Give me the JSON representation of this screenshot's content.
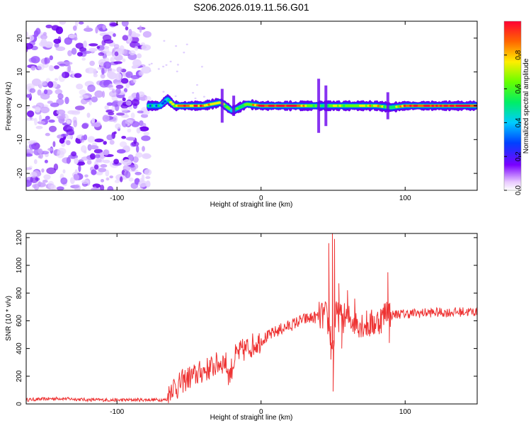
{
  "title": "S206.2026.019.11.56.G01",
  "chart_data": [
    {
      "type": "heatmap",
      "title": "S206.2026.019.11.56.G01",
      "xlabel": "Height of straight line (km)",
      "ylabel": "Frequency (Hz)",
      "xlim": [
        -163,
        150
      ],
      "ylim": [
        -25,
        25
      ],
      "xticks": [
        -100,
        0,
        100
      ],
      "yticks": [
        -20,
        -10,
        0,
        10,
        20
      ],
      "colorbar": {
        "label": "Normalized spectral amplitude",
        "range": [
          0,
          1
        ],
        "ticks": [
          0.0,
          0.2,
          0.4,
          0.6,
          0.8
        ]
      },
      "noise_region_x": [
        -163,
        -78
      ],
      "signal_track": [
        {
          "x": -78,
          "f": 0,
          "amp": 0.4
        },
        {
          "x": -70,
          "f": 0,
          "amp": 0.3
        },
        {
          "x": -65,
          "f": 2,
          "amp": 0.35
        },
        {
          "x": -60,
          "f": 0,
          "amp": 0.75
        },
        {
          "x": -40,
          "f": 0,
          "amp": 0.85
        },
        {
          "x": -28,
          "f": 1,
          "amp": 0.6
        },
        {
          "x": -20,
          "f": -1.5,
          "amp": 0.45
        },
        {
          "x": -10,
          "f": 0.5,
          "amp": 0.55
        },
        {
          "x": 0,
          "f": 0,
          "amp": 0.9
        },
        {
          "x": 25,
          "f": 0,
          "amp": 0.95
        },
        {
          "x": 40,
          "f": 0,
          "amp": 0.45
        },
        {
          "x": 50,
          "f": 0,
          "amp": 0.6
        },
        {
          "x": 60,
          "f": 0,
          "amp": 0.5
        },
        {
          "x": 80,
          "f": 0,
          "amp": 0.7
        },
        {
          "x": 90,
          "f": -0.5,
          "amp": 0.5
        },
        {
          "x": 100,
          "f": 0,
          "amp": 0.9
        },
        {
          "x": 150,
          "f": 0,
          "amp": 0.9
        }
      ]
    },
    {
      "type": "line",
      "xlabel": "Height of straight line (km)",
      "ylabel": "SNR (10 * v/v)",
      "xlim": [
        -163,
        150
      ],
      "ylim": [
        0,
        1230
      ],
      "xticks": [
        -100,
        0,
        100
      ],
      "yticks": [
        0,
        200,
        400,
        600,
        800,
        1000,
        1200
      ],
      "series": [
        {
          "name": "SNR",
          "color": "#ee3333",
          "x": [
            -163,
            -140,
            -120,
            -100,
            -80,
            -65,
            -62,
            -58,
            -55,
            -50,
            -45,
            -40,
            -35,
            -30,
            -25,
            -22,
            -18,
            -15,
            -10,
            -5,
            0,
            5,
            10,
            15,
            20,
            25,
            30,
            35,
            40,
            45,
            48,
            50,
            52,
            55,
            60,
            65,
            70,
            75,
            80,
            85,
            88,
            90,
            95,
            100,
            110,
            120,
            130,
            140,
            150
          ],
          "y": [
            30,
            40,
            30,
            28,
            30,
            30,
            130,
            120,
            160,
            190,
            210,
            240,
            260,
            290,
            310,
            200,
            340,
            370,
            400,
            430,
            460,
            490,
            520,
            545,
            565,
            590,
            610,
            620,
            630,
            640,
            520,
            400,
            640,
            620,
            620,
            600,
            580,
            570,
            590,
            630,
            700,
            640,
            650,
            650,
            655,
            660,
            660,
            665,
            665
          ],
          "spikes": [
            {
              "x": 47,
              "y": 1160
            },
            {
              "x": 48.5,
              "y": 320
            },
            {
              "x": 49.5,
              "y": 1230
            },
            {
              "x": 50,
              "y": 90
            },
            {
              "x": 51,
              "y": 1190
            },
            {
              "x": 54,
              "y": 870
            },
            {
              "x": 56,
              "y": 400
            },
            {
              "x": 60,
              "y": 820
            },
            {
              "x": 65,
              "y": 760
            },
            {
              "x": 88,
              "y": 950
            },
            {
              "x": 89,
              "y": 440
            }
          ]
        }
      ]
    }
  ]
}
